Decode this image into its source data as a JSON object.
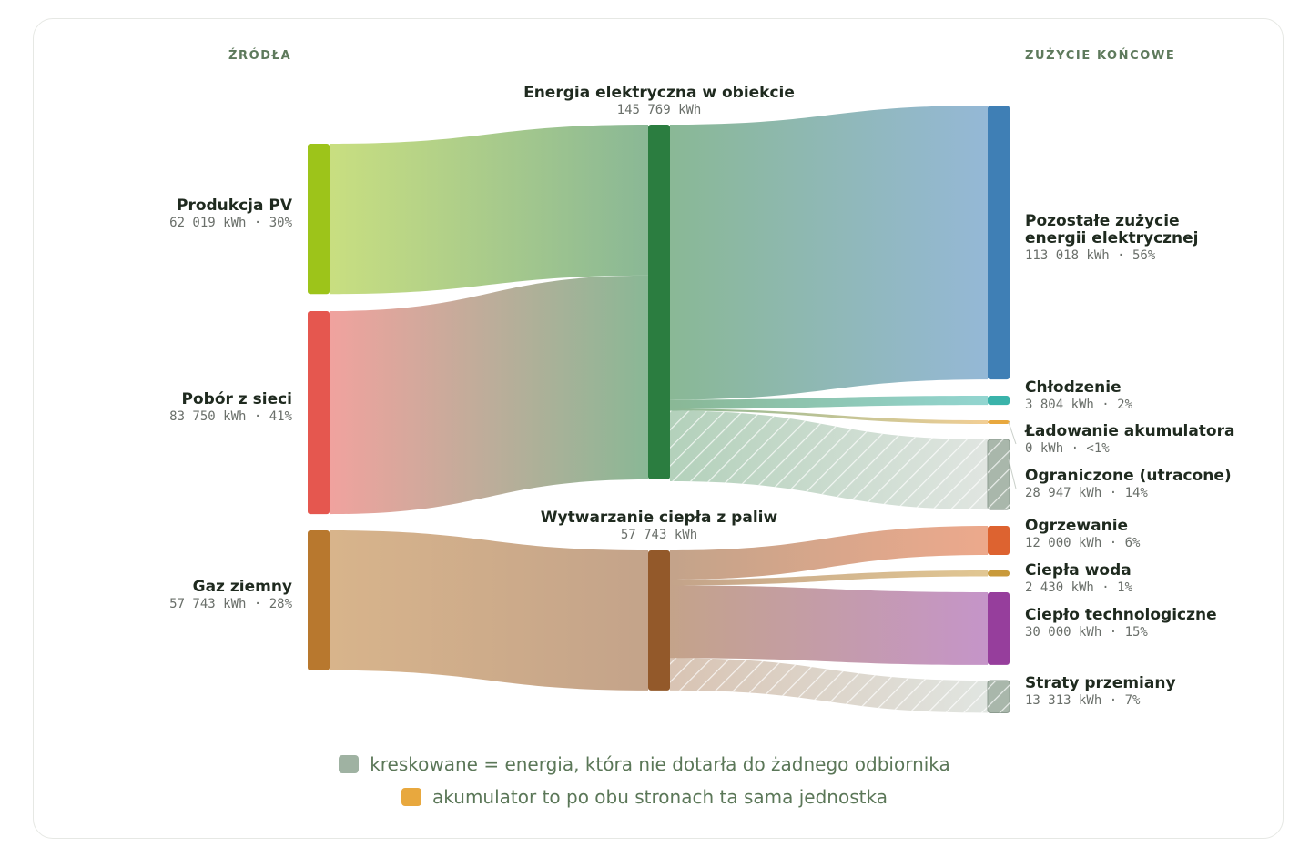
{
  "headers": {
    "sources": "ŹRÓDŁA",
    "end_use": "ZUŻYCIE KOŃCOWE"
  },
  "legend": {
    "hatched": {
      "text": "kreskowane = energia, która nie dotarła do żadnego odbiornika",
      "color": "#9fb2a2"
    },
    "battery": {
      "text": "akumulator to po obu stronach ta sama jednostka",
      "color": "#e8a83e"
    }
  },
  "chart_data": {
    "type": "sankey",
    "unit": "kWh",
    "nodes": [
      {
        "id": "pv",
        "name": "Produkcja PV",
        "value_text": "62 019 kWh · 30%",
        "value": 62019,
        "color": "#9dc41a",
        "column": "source"
      },
      {
        "id": "grid",
        "name": "Pobór z sieci",
        "value_text": "83 750 kWh · 41%",
        "value": 83750,
        "color": "#e5574f",
        "column": "source"
      },
      {
        "id": "gas",
        "name": "Gaz ziemny",
        "value_text": "57 743 kWh · 28%",
        "value": 57743,
        "color": "#b8782e",
        "column": "source"
      },
      {
        "id": "elec",
        "name": "Energia elektryczna w obiekcie",
        "value_text": "145 769 kWh",
        "value": 145769,
        "color": "#2b7d40",
        "column": "middle"
      },
      {
        "id": "heatgen",
        "name": "Wytwarzanie ciepła z paliw",
        "value_text": "57 743 kWh",
        "value": 57743,
        "color": "#93592a",
        "column": "middle"
      },
      {
        "id": "other",
        "name": "Pozostałe zużycie energii elektrycznej",
        "value_text": "113 018 kWh · 56%",
        "value": 113018,
        "color": "#3f7fb5",
        "column": "end"
      },
      {
        "id": "cool",
        "name": "Chłodzenie",
        "value_text": "3 804 kWh · 2%",
        "value": 3804,
        "color": "#3ab3aa",
        "column": "end"
      },
      {
        "id": "batt",
        "name": "Ładowanie akumulatora",
        "value_text": "0 kWh · <1%",
        "value": 0,
        "color": "#e8a83e",
        "column": "end"
      },
      {
        "id": "curt",
        "name": "Ograniczone (utracone)",
        "value_text": "28 947 kWh · 14%",
        "value": 28947,
        "color": "#a9b7ab",
        "column": "end",
        "hatched": true
      },
      {
        "id": "heat",
        "name": "Ogrzewanie",
        "value_text": "12 000 kWh · 6%",
        "value": 12000,
        "color": "#dd6330",
        "column": "end"
      },
      {
        "id": "dhw",
        "name": "Ciepła woda",
        "value_text": "2 430 kWh · 1%",
        "value": 2430,
        "color": "#c99a3b",
        "column": "end"
      },
      {
        "id": "proc",
        "name": "Ciepło technologiczne",
        "value_text": "30 000 kWh · 15%",
        "value": 30000,
        "color": "#963e9c",
        "column": "end"
      },
      {
        "id": "loss",
        "name": "Straty przemiany",
        "value_text": "13 313 kWh · 7%",
        "value": 13313,
        "color": "#a9b7ab",
        "column": "end",
        "hatched": true
      }
    ],
    "links": [
      {
        "source": "pv",
        "target": "elec",
        "value": 62019
      },
      {
        "source": "grid",
        "target": "elec",
        "value": 83750
      },
      {
        "source": "gas",
        "target": "heatgen",
        "value": 57743
      },
      {
        "source": "elec",
        "target": "other",
        "value": 113018
      },
      {
        "source": "elec",
        "target": "cool",
        "value": 3804
      },
      {
        "source": "elec",
        "target": "batt",
        "value": 0
      },
      {
        "source": "elec",
        "target": "curt",
        "value": 28947,
        "hatched": true
      },
      {
        "source": "heatgen",
        "target": "heat",
        "value": 12000
      },
      {
        "source": "heatgen",
        "target": "dhw",
        "value": 2430
      },
      {
        "source": "heatgen",
        "target": "proc",
        "value": 30000
      },
      {
        "source": "heatgen",
        "target": "loss",
        "value": 13313,
        "hatched": true
      }
    ]
  }
}
